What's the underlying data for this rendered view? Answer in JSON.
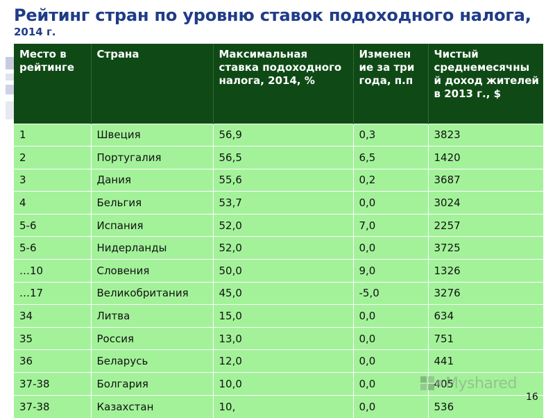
{
  "title": {
    "main": "Рейтинг стран по уровню ставок подоходного налога,",
    "sub": "2014 г."
  },
  "table": {
    "headers": [
      "Место в рейтинге",
      "Страна",
      "Максимальная ставка подоходного налога, 2014, %",
      "Изменен ие за три года, п.п",
      "Чистый среднемесячны й доход жителей в 2013 г., $"
    ],
    "rows": [
      [
        "1",
        "Швеция",
        "56,9",
        "0,3",
        "3823"
      ],
      [
        "2",
        "Португалия",
        "56,5",
        "6,5",
        "1420"
      ],
      [
        "3",
        "Дания",
        "55,6",
        "0,2",
        "3687"
      ],
      [
        "4",
        "Бельгия",
        "53,7",
        "0,0",
        "3024"
      ],
      [
        "5-6",
        "Испания",
        "52,0",
        "7,0",
        "2257"
      ],
      [
        "5-6",
        "Нидерланды",
        "52,0",
        "0,0",
        "3725"
      ],
      [
        "…10",
        "Словения",
        "50,0",
        "9,0",
        "1326"
      ],
      [
        "…17",
        "Великобритания",
        "45,0",
        "-5,0",
        "3276"
      ],
      [
        "34",
        "Литва",
        "15,0",
        "0,0",
        "634"
      ],
      [
        "35",
        "Россия",
        "13,0",
        "0,0",
        "751"
      ],
      [
        "36",
        "Беларусь",
        "12,0",
        "0,0",
        "441"
      ],
      [
        "37-38",
        "Болгария",
        "10,0",
        "0,0",
        "405"
      ],
      [
        "37-38",
        "Казахстан",
        "10,",
        "0,0",
        "536"
      ]
    ]
  },
  "page_number": "16",
  "watermark": {
    "text": "Мyshared"
  },
  "colors": {
    "title": "#1f3c88",
    "header_bg": "#0f4a16",
    "row_bg": "#a3f29a"
  }
}
